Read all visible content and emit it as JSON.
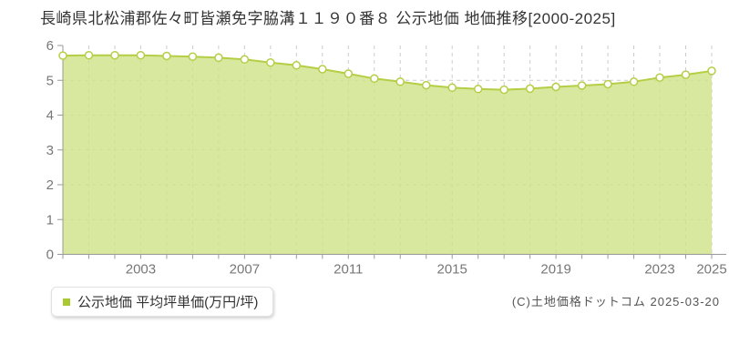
{
  "title": "長崎県北松浦郡佐々町皆瀬免字脇溝１１９０番８ 公示地価 地価推移[2000-2025]",
  "legend": {
    "label": "公示地価 平均坪単価(万円/坪)"
  },
  "copyright": "(C)土地価格ドットコム 2025-03-20",
  "chart_data": {
    "type": "area",
    "title": "長崎県北松浦郡佐々町皆瀬免字脇溝１１９０番８ 公示地価 地価推移[2000-2025]",
    "series": [
      {
        "name": "公示地価 平均坪単価(万円/坪)",
        "x": [
          2000,
          2001,
          2002,
          2003,
          2004,
          2005,
          2006,
          2007,
          2008,
          2009,
          2010,
          2011,
          2012,
          2013,
          2014,
          2015,
          2016,
          2017,
          2018,
          2019,
          2020,
          2021,
          2022,
          2023,
          2024,
          2025
        ],
        "values": [
          5.71,
          5.72,
          5.72,
          5.72,
          5.7,
          5.68,
          5.65,
          5.6,
          5.51,
          5.43,
          5.32,
          5.19,
          5.05,
          4.96,
          4.86,
          4.79,
          4.75,
          4.73,
          4.76,
          4.81,
          4.85,
          4.89,
          4.96,
          5.08,
          5.16,
          5.27
        ]
      }
    ],
    "xlabel": "",
    "ylabel": "",
    "xlim": [
      2000,
      2025
    ],
    "ylim": [
      0,
      6
    ],
    "yticks": [
      0,
      1,
      2,
      3,
      4,
      5,
      6
    ],
    "xtick_labels": [
      2003,
      2007,
      2011,
      2015,
      2019,
      2023,
      2025
    ],
    "grid": true,
    "legend_position": "bottom-left",
    "unit": "万円/坪",
    "colors": {
      "line": "#b4ce45",
      "area_fill": "#cfe287",
      "marker_fill": "#ffffff",
      "marker_stroke": "#b4ce45",
      "grid": "#cccccc",
      "axis": "#999999",
      "tick_label": "#777777",
      "legend_marker": "#a9c832",
      "title_text": "#333333"
    }
  }
}
